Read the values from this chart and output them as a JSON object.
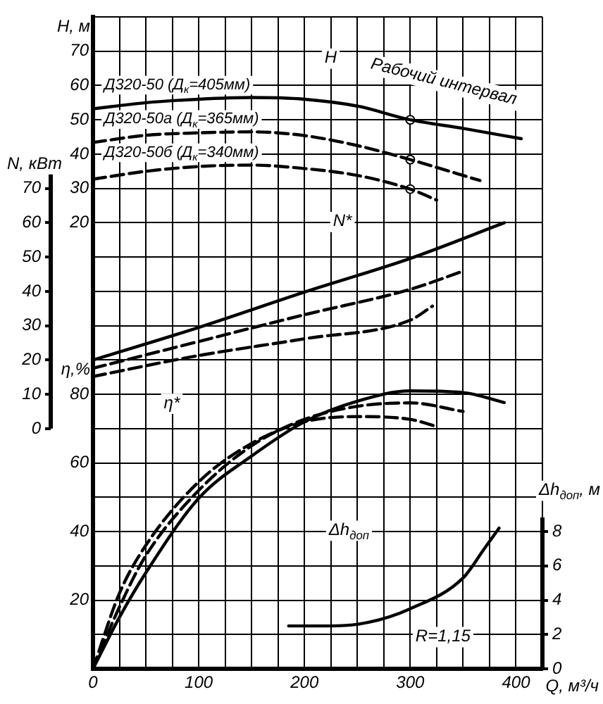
{
  "chart_data": [
    {
      "type": "line",
      "xlabel": "Q, м³/ч",
      "ylabel": "η,%",
      "y2label": "Δh$_{доп}$, м",
      "xlim": [
        0,
        425
      ],
      "xticks": [
        0,
        {
          "value": 25,
          "label": null
        },
        {
          "value": 50,
          "label": null
        },
        {
          "value": 75,
          "label": null
        },
        100,
        {
          "value": 125,
          "label": null
        },
        {
          "value": 150,
          "label": null
        },
        {
          "value": 175,
          "label": null
        },
        200,
        {
          "value": 225,
          "label": null
        },
        {
          "value": 250,
          "label": null
        },
        {
          "value": 275,
          "label": null
        },
        300,
        {
          "value": 325,
          "label": null
        },
        {
          "value": 350,
          "label": null
        },
        {
          "value": 375,
          "label": null
        },
        400,
        {
          "value": 425,
          "label": null
        }
      ],
      "ylim": [
        0,
        190
      ],
      "yticks": [
        {
          "value": 0,
          "label": null
        },
        {
          "value": 10,
          "label": null
        },
        20,
        {
          "value": 30,
          "label": null
        },
        40,
        {
          "value": 50,
          "label": null
        },
        60,
        {
          "value": 70,
          "label": null
        },
        80,
        {
          "value": 90,
          "label": null
        },
        {
          "value": 100,
          "label": null
        },
        {
          "value": 110,
          "label": null
        },
        {
          "value": 120,
          "label": null
        },
        {
          "value": 130,
          "label": null
        },
        {
          "value": 140,
          "label": null
        },
        {
          "value": 150,
          "label": null
        },
        {
          "value": 160,
          "label": null
        },
        {
          "value": 170,
          "label": null
        },
        {
          "value": 180,
          "label": null
        },
        {
          "value": 190,
          "label": null
        }
      ],
      "y2lim": [
        0,
        38
      ],
      "y2ticks": [
        0,
        2,
        4,
        6,
        8
      ],
      "grid": true,
      "legend": false,
      "marker": "none",
      "annotations": [
        "H",
        "Рабочий интервал",
        "N*",
        "η*",
        "Δh$_{доп}$",
        "R=1,15"
      ],
      "series": [
        {
          "color": "#000000",
          "line_style": "solid",
          "x": [
            0,
            25,
            50,
            100,
            150,
            200,
            250,
            300,
            350,
            389
          ],
          "values": [
            0,
            15,
            28,
            49.7,
            62,
            72,
            78,
            81,
            80.5,
            77.6
          ]
        },
        {
          "color": "#000000",
          "line_style": "dashed",
          "x": [
            0,
            25,
            50,
            100,
            150,
            200,
            250,
            300,
            350
          ],
          "values": [
            0,
            18,
            33,
            52,
            65,
            72.7,
            76.5,
            77.5,
            75
          ]
        },
        {
          "color": "#000000",
          "line_style": "dashed",
          "x": [
            0,
            25,
            50,
            100,
            150,
            200,
            250,
            300,
            325
          ],
          "values": [
            0,
            22,
            36,
            54.5,
            65.7,
            72,
            73.5,
            72.7,
            70.6
          ]
        },
        {
          "color": "#000000",
          "axis": "y2",
          "line_style": "solid",
          "x": [
            185,
            225,
            260,
            300,
            350,
            370,
            384
          ],
          "values": [
            2.5,
            2.5,
            2.7,
            3.5,
            5.3,
            7,
            8.2
          ]
        }
      ]
    },
    {
      "type": "line",
      "ylabel": "H, м",
      "y2label": "N, кВт",
      "tick_labels": "y",
      "xlim": [
        0,
        425
      ],
      "ylim": [
        -110,
        80
      ],
      "yticks": [
        20,
        30,
        40,
        50,
        60,
        70
      ],
      "y2lim": [
        -70,
        120
      ],
      "y2ticks": [
        0,
        10,
        20,
        30,
        40,
        50,
        60,
        70
      ],
      "legend": false,
      "marker": "none",
      "series": [
        {
          "name": "Д320-50 (Д$_{к}$=405мм)",
          "color": "#000000",
          "line_style": "solid",
          "x": [
            0,
            50,
            100,
            150,
            200,
            250,
            300,
            350,
            405
          ],
          "values": [
            53.2,
            55,
            56,
            56.5,
            56,
            54,
            50,
            47.5,
            44.5
          ]
        },
        {
          "name": "Д320-50а (Д$_{к}$=365мм)",
          "color": "#000000",
          "line_style": "dashed",
          "x": [
            0,
            50,
            100,
            150,
            200,
            250,
            300,
            366
          ],
          "values": [
            43.4,
            45.5,
            46.2,
            46.5,
            45.4,
            42.5,
            38.4,
            32.3
          ]
        },
        {
          "name": "Д320-50б (Д$_{к}$=340мм)",
          "color": "#000000",
          "line_style": "dashed",
          "x": [
            0,
            50,
            100,
            150,
            200,
            250,
            300,
            325
          ],
          "values": [
            32.7,
            35,
            36.4,
            36.8,
            35.8,
            33.8,
            29.8,
            26.6
          ]
        },
        {
          "color": "#000000",
          "axis": "y2",
          "line_style": "solid",
          "x": [
            0,
            100,
            200,
            300,
            389
          ],
          "values": [
            20,
            29.5,
            39.8,
            49.6,
            60
          ]
        },
        {
          "color": "#000000",
          "axis": "y2",
          "line_style": "dashed",
          "x": [
            0,
            100,
            200,
            300,
            350
          ],
          "values": [
            17.6,
            25.4,
            33.2,
            40.6,
            45.9
          ]
        },
        {
          "color": "#000000",
          "axis": "y2",
          "line_style": "dashed",
          "x": [
            0,
            100,
            200,
            300,
            321
          ],
          "values": [
            15.2,
            21.3,
            26.2,
            31.6,
            35.7
          ]
        },
        {
          "type": "scatter",
          "color": "#000000",
          "marker": "circle",
          "x": [
            300,
            300,
            300
          ],
          "values": [
            50,
            38.4,
            29.8
          ]
        }
      ]
    }
  ]
}
